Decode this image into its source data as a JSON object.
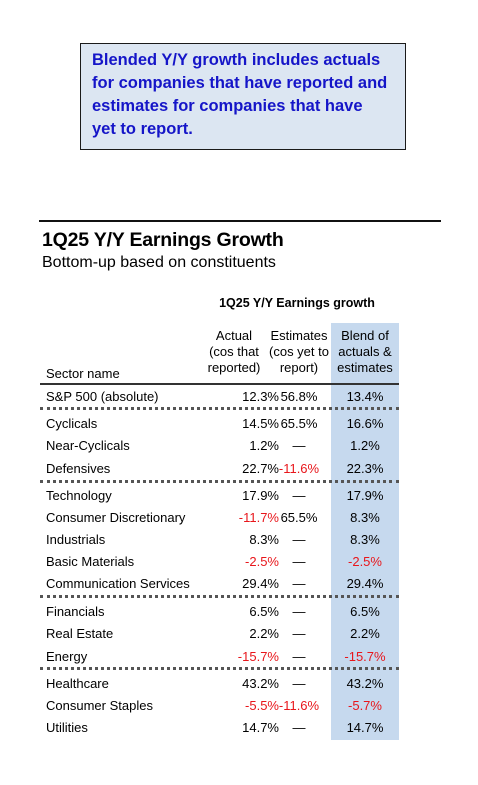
{
  "callout": {
    "lines": [
      "Blended Y/Y growth includes actuals",
      "for companies that have reported and",
      "estimates for companies that have",
      "yet to report."
    ]
  },
  "title": "1Q25 Y/Y Earnings Growth",
  "subtitle": "Bottom-up based on constituents",
  "table": {
    "group_header": "1Q25 Y/Y Earnings growth",
    "sector_header": "Sector name",
    "col_actual": [
      "Actual",
      "(cos that",
      "reported)"
    ],
    "col_estimates": [
      "Estimates",
      "(cos yet to",
      "report)"
    ],
    "col_blend": [
      "Blend of",
      "actuals &",
      "estimates"
    ],
    "rows": [
      {
        "name": "S&P 500 (absolute)",
        "actual": "12.3%",
        "estimates": "56.8%",
        "blend": "13.4%",
        "neg": [
          false,
          false,
          false
        ]
      },
      {
        "name": "Cyclicals",
        "actual": "14.5%",
        "estimates": "65.5%",
        "blend": "16.6%",
        "neg": [
          false,
          false,
          false
        ]
      },
      {
        "name": "Near-Cyclicals",
        "actual": "1.2%",
        "estimates": "—",
        "blend": "1.2%",
        "neg": [
          false,
          false,
          false
        ]
      },
      {
        "name": "Defensives",
        "actual": "22.7%",
        "estimates": "-11.6%",
        "blend": "22.3%",
        "neg": [
          false,
          true,
          false
        ]
      },
      {
        "name": "Technology",
        "actual": "17.9%",
        "estimates": "—",
        "blend": "17.9%",
        "neg": [
          false,
          false,
          false
        ]
      },
      {
        "name": "Consumer Discretionary",
        "actual": "-11.7%",
        "estimates": "65.5%",
        "blend": "8.3%",
        "neg": [
          true,
          false,
          false
        ]
      },
      {
        "name": "Industrials",
        "actual": "8.3%",
        "estimates": "—",
        "blend": "8.3%",
        "neg": [
          false,
          false,
          false
        ]
      },
      {
        "name": "Basic Materials",
        "actual": "-2.5%",
        "estimates": "—",
        "blend": "-2.5%",
        "neg": [
          true,
          false,
          true
        ]
      },
      {
        "name": "Communication Services",
        "actual": "29.4%",
        "estimates": "—",
        "blend": "29.4%",
        "neg": [
          false,
          false,
          false
        ]
      },
      {
        "name": "Financials",
        "actual": "6.5%",
        "estimates": "—",
        "blend": "6.5%",
        "neg": [
          false,
          false,
          false
        ]
      },
      {
        "name": "Real Estate",
        "actual": "2.2%",
        "estimates": "—",
        "blend": "2.2%",
        "neg": [
          false,
          false,
          false
        ]
      },
      {
        "name": "Energy",
        "actual": "-15.7%",
        "estimates": "—",
        "blend": "-15.7%",
        "neg": [
          true,
          false,
          true
        ]
      },
      {
        "name": "Healthcare",
        "actual": "43.2%",
        "estimates": "—",
        "blend": "43.2%",
        "neg": [
          false,
          false,
          false
        ]
      },
      {
        "name": "Consumer Staples",
        "actual": "-5.5%",
        "estimates": "-11.6%",
        "blend": "-5.7%",
        "neg": [
          true,
          true,
          true
        ]
      },
      {
        "name": "Utilities",
        "actual": "14.7%",
        "estimates": "—",
        "blend": "14.7%",
        "neg": [
          false,
          false,
          false
        ]
      }
    ]
  }
}
